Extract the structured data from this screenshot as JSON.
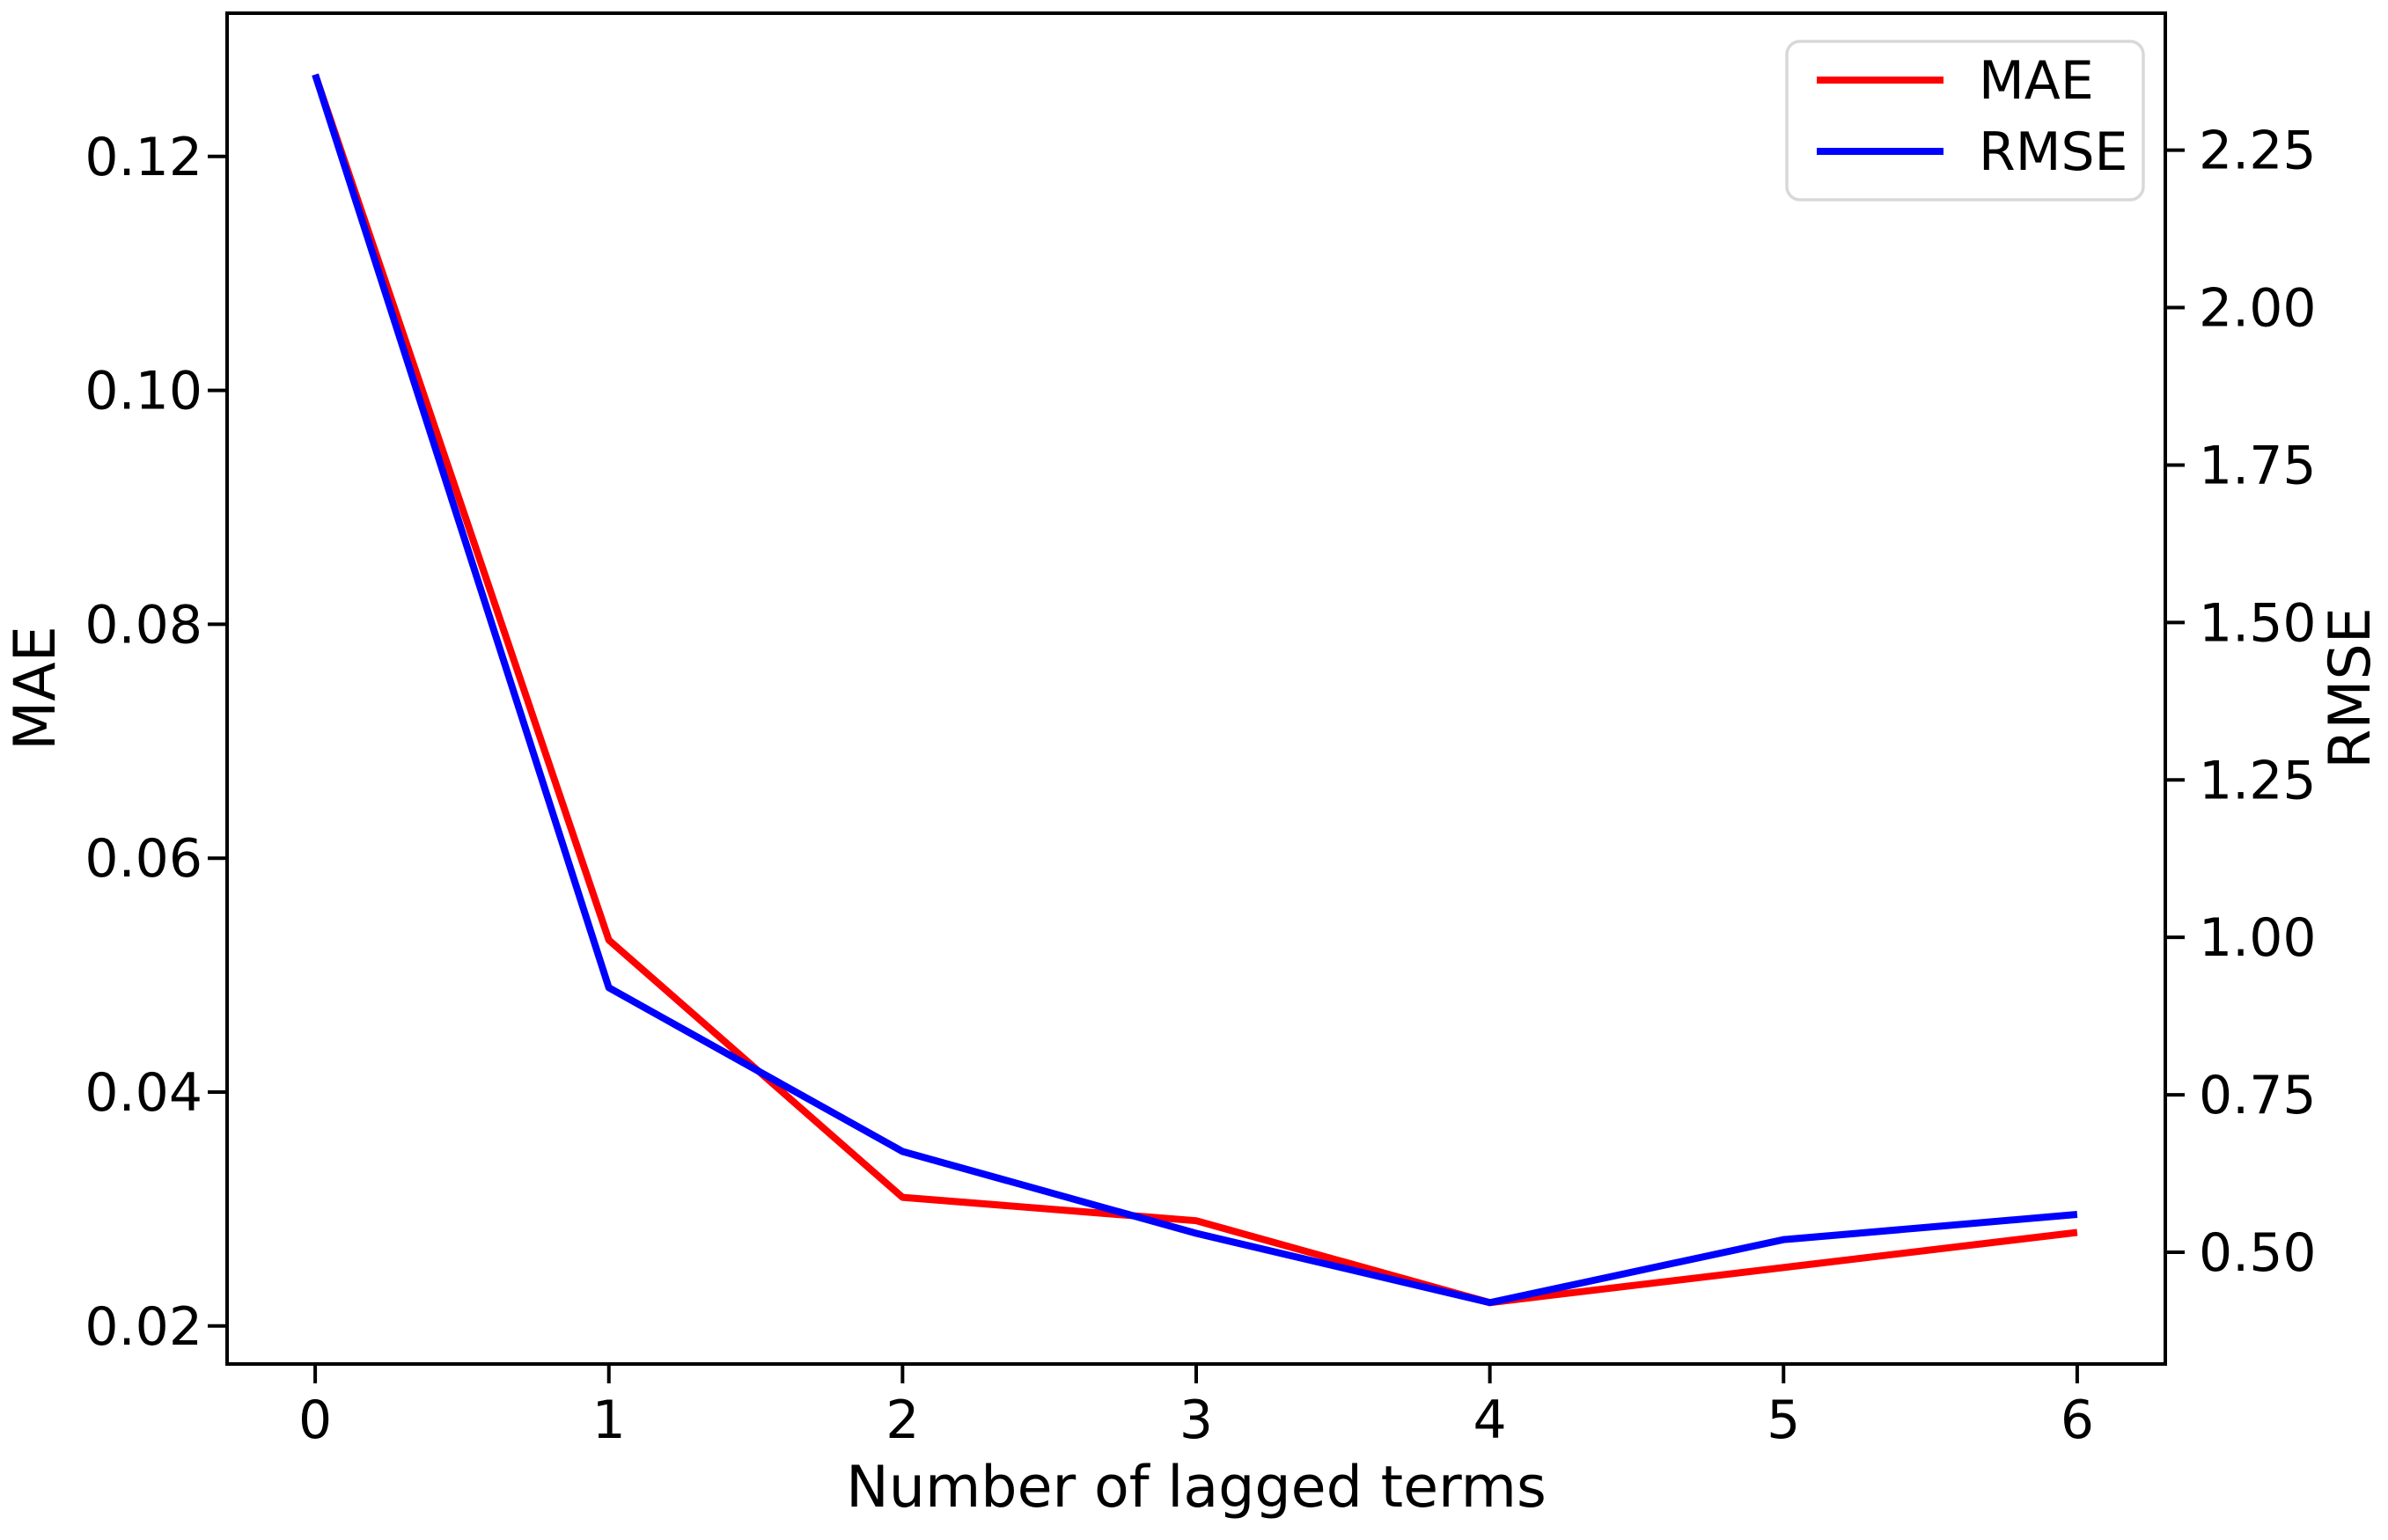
{
  "chart_data": {
    "type": "line",
    "title": "",
    "xlabel": "Number of lagged terms",
    "ylabel_left": "MAE",
    "ylabel_right": "RMSE",
    "x": [
      0,
      1,
      2,
      3,
      4,
      5,
      6
    ],
    "series": [
      {
        "name": "MAE",
        "axis": "left",
        "color": "#ff0000",
        "values": [
          0.127,
          0.053,
          0.031,
          0.029,
          0.022,
          0.025,
          0.028
        ]
      },
      {
        "name": "RMSE",
        "axis": "right",
        "color": "#0000ff",
        "values": [
          2.37,
          0.92,
          0.66,
          0.53,
          0.42,
          0.52,
          0.56
        ]
      }
    ],
    "xlim": [
      -0.3,
      6.3
    ],
    "ylim_left": [
      0.01675,
      0.13225
    ],
    "ylim_right": [
      0.3225,
      2.4675
    ],
    "xticks": {
      "values": [
        0,
        1,
        2,
        3,
        4,
        5,
        6
      ],
      "labels": [
        "0",
        "1",
        "2",
        "3",
        "4",
        "5",
        "6"
      ]
    },
    "yticks_left": {
      "values": [
        0.02,
        0.04,
        0.06,
        0.08,
        0.1,
        0.12
      ],
      "labels": [
        "0.02",
        "0.04",
        "0.06",
        "0.08",
        "0.10",
        "0.12"
      ]
    },
    "yticks_right": {
      "values": [
        0.5,
        0.75,
        1.0,
        1.25,
        1.5,
        1.75,
        2.0,
        2.25
      ],
      "labels": [
        "0.50",
        "0.75",
        "1.00",
        "1.25",
        "1.50",
        "1.75",
        "2.00",
        "2.25"
      ]
    },
    "legend": {
      "location": "upper right",
      "entries": [
        {
          "label": "MAE",
          "color": "#ff0000"
        },
        {
          "label": "RMSE",
          "color": "#0000ff"
        }
      ]
    },
    "grid": false,
    "frame_color": "#000000",
    "background": "#ffffff"
  }
}
